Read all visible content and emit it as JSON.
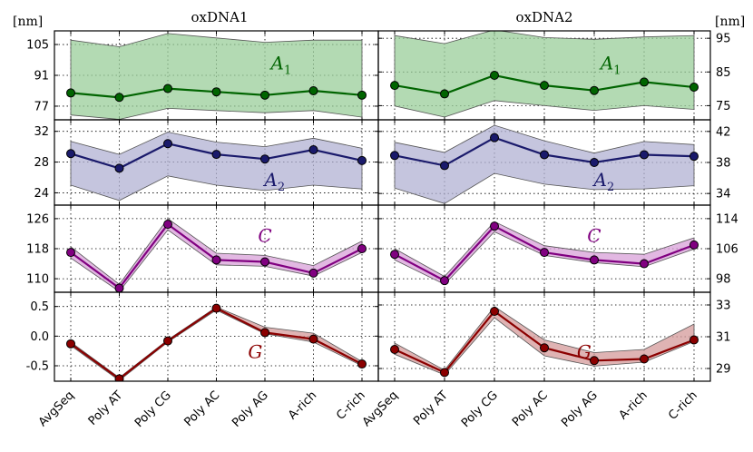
{
  "chart_data": {
    "type": "line",
    "categories": [
      "AvgSeq",
      "Poly AT",
      "Poly CG",
      "Poly AC",
      "Poly AG",
      "A-rich",
      "C-rich"
    ],
    "units_left": "[nm]",
    "units_right": "[nm]",
    "columns": [
      {
        "title": "oxDNA1",
        "tick_side": "left"
      },
      {
        "title": "oxDNA2",
        "tick_side": "right"
      }
    ],
    "rows": [
      {
        "label": "A",
        "label_sub": "1",
        "color": "#006400",
        "fill": "#9acd9a",
        "panels": [
          {
            "ylim": [
              70.8,
              111.2
            ],
            "ticks": [
              "105",
              "91",
              "77"
            ],
            "tick_values": [
              105,
              91,
              77
            ],
            "values": [
              83,
              81,
              85,
              83.5,
              82,
              84,
              82
            ],
            "upper": [
              107,
              104,
              110,
              108,
              106,
              107,
              107
            ],
            "lower": [
              73,
              71,
              76,
              75,
              74,
              75,
              72
            ]
          },
          {
            "ylim": [
              70.8,
              97.2
            ],
            "ticks": [
              "95",
              "85",
              "75"
            ],
            "tick_values": [
              95,
              85,
              75
            ],
            "values": [
              81,
              78.5,
              84,
              81,
              79.5,
              82,
              80.5
            ],
            "upper": [
              95.8,
              93.4,
              97.5,
              95.2,
              94.7,
              95.4,
              95.8
            ],
            "lower": [
              74.9,
              71.6,
              76.5,
              75,
              73.6,
              75,
              73.9
            ]
          }
        ]
      },
      {
        "label": "A",
        "label_sub": "2",
        "color": "#1a1a6b",
        "fill": "#b1b1d3",
        "panels": [
          {
            "ylim": [
              22.4,
              33.5
            ],
            "ticks": [
              "32",
              "28",
              "24"
            ],
            "tick_values": [
              32,
              28,
              24
            ],
            "values": [
              29.1,
              27.2,
              30.4,
              29,
              28.4,
              29.6,
              28.2
            ],
            "upper": [
              30.7,
              29,
              31.9,
              30.6,
              30,
              31.1,
              29.8
            ],
            "lower": [
              25,
              23,
              26.2,
              25,
              24.3,
              25,
              24.5
            ]
          },
          {
            "ylim": [
              32.5,
              43.5
            ],
            "ticks": [
              "42",
              "38",
              "34"
            ],
            "tick_values": [
              42,
              38,
              34
            ],
            "values": [
              38.9,
              37.6,
              41.2,
              39,
              38,
              39,
              38.8
            ],
            "upper": [
              40.6,
              39.3,
              42.8,
              40.8,
              39.2,
              40.7,
              40.3
            ],
            "lower": [
              34.7,
              32.7,
              36.6,
              35.2,
              34.5,
              34.6,
              35
            ]
          }
        ]
      },
      {
        "label": "C",
        "label_sub": "",
        "color": "#800080",
        "fill": "#d8a0d8",
        "panels": [
          {
            "ylim": [
              106.4,
              129.6
            ],
            "ticks": [
              "126",
              "118",
              "110"
            ],
            "tick_values": [
              126,
              118,
              110
            ],
            "values": [
              117,
              107.5,
              124.5,
              115,
              114.5,
              111.5,
              118
            ],
            "upper": [
              118.5,
              108.5,
              126,
              116.8,
              116.2,
              113.5,
              120
            ],
            "lower": [
              115.5,
              106.6,
              123,
              113.7,
              113.3,
              110.7,
              117
            ]
          },
          {
            "ylim": [
              94.4,
              117.6
            ],
            "ticks": [
              "114",
              "106",
              "98"
            ],
            "tick_values": [
              114,
              106,
              98
            ],
            "values": [
              104.5,
              97.5,
              112,
              105,
              103,
              102,
              107
            ],
            "upper": [
              106,
              98.6,
              113.2,
              106.8,
              105,
              104.5,
              108.9
            ],
            "lower": [
              103,
              96.5,
              110.5,
              104.2,
              102.3,
              101.2,
              105.9
            ]
          }
        ]
      },
      {
        "label": "G",
        "label_sub": "",
        "color": "#8b0000",
        "fill": "#d49a9a",
        "panels": [
          {
            "ylim": [
              -0.76,
              0.74
            ],
            "ticks": [
              "0.5",
              "0.0",
              "-0.5"
            ],
            "tick_values": [
              0.5,
              0.0,
              -0.5
            ],
            "values": [
              -0.13,
              -0.72,
              -0.08,
              0.47,
              0.06,
              -0.05,
              -0.47
            ],
            "upper": [
              -0.1,
              -0.7,
              -0.06,
              0.49,
              0.15,
              0.05,
              -0.43
            ],
            "lower": [
              -0.16,
              -0.75,
              -0.1,
              0.44,
              0.04,
              -0.1,
              -0.5
            ]
          },
          {
            "ylim": [
              28.2,
              33.8
            ],
            "ticks": [
              "33",
              "31",
              "29"
            ],
            "tick_values": [
              33,
              31,
              29
            ],
            "values": [
              30.2,
              28.75,
              32.6,
              30.3,
              29.5,
              29.6,
              30.8
            ],
            "upper": [
              30.6,
              28.9,
              32.9,
              30.8,
              30,
              30.2,
              31.8
            ],
            "lower": [
              29.9,
              28.6,
              32.2,
              29.8,
              29.15,
              29.4,
              30.7
            ]
          }
        ]
      }
    ]
  }
}
